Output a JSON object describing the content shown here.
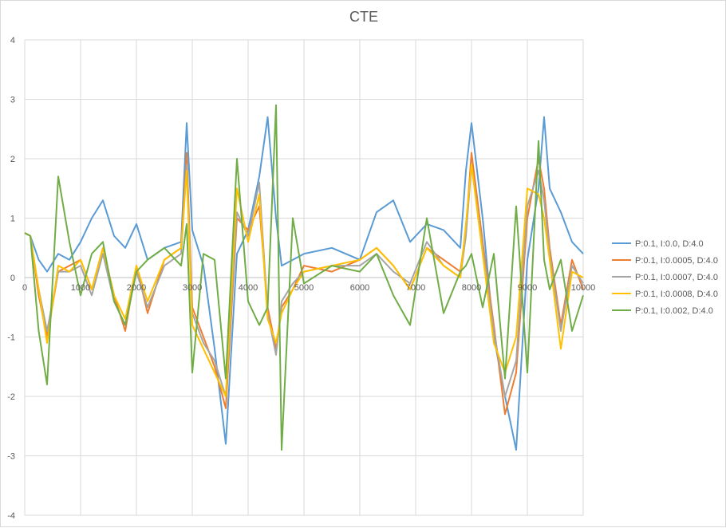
{
  "chart_data": {
    "type": "line",
    "title": "CTE",
    "xlabel": "",
    "ylabel": "",
    "xlim": [
      0,
      10000
    ],
    "ylim": [
      -4,
      4
    ],
    "x_ticks": [
      0,
      1000,
      2000,
      3000,
      4000,
      5000,
      6000,
      7000,
      8000,
      9000,
      10000
    ],
    "y_ticks": [
      -4,
      -3,
      -2,
      -1,
      0,
      1,
      2,
      3,
      4
    ],
    "grid": true,
    "legend_position": "right",
    "x": [
      0,
      100,
      250,
      400,
      600,
      800,
      1000,
      1200,
      1400,
      1600,
      1800,
      2000,
      2200,
      2500,
      2800,
      2900,
      3000,
      3200,
      3400,
      3600,
      3800,
      4000,
      4200,
      4350,
      4500,
      4600,
      4800,
      5000,
      5500,
      6000,
      6300,
      6600,
      6900,
      7200,
      7500,
      7800,
      7900,
      8000,
      8200,
      8400,
      8600,
      8800,
      9000,
      9200,
      9300,
      9400,
      9600,
      9800,
      10000
    ],
    "series": [
      {
        "name": "P:0.1, I:0.0, D:4.0",
        "color": "#5b9bd5",
        "values": [
          0.75,
          0.7,
          0.3,
          0.1,
          0.4,
          0.3,
          0.6,
          1.0,
          1.3,
          0.7,
          0.5,
          0.9,
          0.3,
          0.5,
          0.6,
          2.6,
          0.8,
          0.2,
          -1.2,
          -2.8,
          0.4,
          0.8,
          1.7,
          2.7,
          1.0,
          0.2,
          0.3,
          0.4,
          0.5,
          0.3,
          1.1,
          1.3,
          0.6,
          0.9,
          0.8,
          0.5,
          1.8,
          2.6,
          1.0,
          -1.0,
          -2.0,
          -2.9,
          0.3,
          1.5,
          2.7,
          1.5,
          1.1,
          0.6,
          0.4
        ]
      },
      {
        "name": "P:0.1, I:0.0005, D:4.0",
        "color": "#ed7d31",
        "values": [
          0.75,
          0.7,
          -0.3,
          -1.0,
          0.1,
          0.2,
          0.3,
          -0.2,
          0.5,
          -0.3,
          -0.9,
          0.2,
          -0.6,
          0.3,
          0.5,
          2.1,
          -0.5,
          -1.0,
          -1.5,
          -2.2,
          1.0,
          0.8,
          1.2,
          -0.5,
          -1.2,
          -0.5,
          -0.2,
          0.2,
          0.1,
          0.3,
          0.5,
          0.2,
          -0.2,
          0.5,
          0.3,
          0.1,
          0.8,
          2.1,
          0.6,
          -0.8,
          -2.3,
          -1.6,
          1.0,
          2.0,
          1.5,
          0.5,
          -0.8,
          0.3,
          -0.2
        ]
      },
      {
        "name": "P:0.1, I:0.0007, D:4.0",
        "color": "#a5a5a5",
        "values": [
          0.75,
          0.7,
          -0.2,
          -0.9,
          0.1,
          0.1,
          0.2,
          -0.3,
          0.4,
          -0.4,
          -0.8,
          0.1,
          -0.5,
          0.2,
          0.4,
          1.9,
          -0.6,
          -1.1,
          -1.4,
          -2.0,
          1.1,
          0.7,
          1.6,
          -0.6,
          -1.3,
          -0.4,
          -0.1,
          0.1,
          0.2,
          0.2,
          0.4,
          0.1,
          -0.1,
          0.6,
          0.2,
          0.0,
          0.7,
          1.9,
          0.5,
          -0.9,
          -2.0,
          -1.4,
          1.2,
          1.8,
          1.3,
          0.4,
          -0.9,
          0.2,
          -0.1
        ]
      },
      {
        "name": "P:0.1, I:0.0008, D:4.0",
        "color": "#ffc000",
        "values": [
          0.75,
          0.7,
          -0.2,
          -1.1,
          0.2,
          0.1,
          0.3,
          -0.2,
          0.5,
          -0.3,
          -0.7,
          0.2,
          -0.4,
          0.3,
          0.5,
          1.8,
          -0.8,
          -1.2,
          -1.6,
          -2.0,
          1.5,
          0.6,
          1.4,
          -0.7,
          -1.1,
          -0.6,
          -0.2,
          0.1,
          0.2,
          0.3,
          0.5,
          0.2,
          -0.2,
          0.5,
          0.2,
          0.0,
          0.9,
          1.9,
          0.4,
          -1.1,
          -1.6,
          -1.0,
          1.5,
          1.4,
          1.0,
          0.3,
          -1.2,
          0.1,
          0.0
        ]
      },
      {
        "name": "P:0.1, I:0.002, D:4.0",
        "color": "#70ad47",
        "values": [
          0.75,
          0.7,
          -0.9,
          -1.8,
          1.7,
          0.6,
          -0.3,
          0.4,
          0.6,
          -0.4,
          -0.8,
          0.1,
          0.3,
          0.5,
          0.2,
          0.9,
          -1.6,
          0.4,
          0.3,
          -1.7,
          2.0,
          -0.4,
          -0.8,
          -0.5,
          2.9,
          -2.9,
          1.0,
          -0.1,
          0.2,
          0.1,
          0.4,
          -0.3,
          -0.8,
          1.0,
          -0.6,
          0.1,
          0.2,
          0.4,
          -0.5,
          0.4,
          -1.7,
          1.2,
          -1.6,
          2.3,
          0.3,
          -0.2,
          0.3,
          -0.9,
          -0.3
        ]
      }
    ]
  }
}
